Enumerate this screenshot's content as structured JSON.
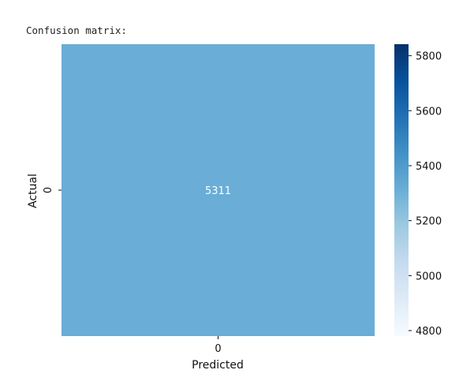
{
  "output": {
    "text": "Confusion matrix:"
  },
  "chart_data": {
    "type": "heatmap",
    "title": "",
    "xlabel": "Predicted",
    "ylabel": "Actual",
    "x_categories": [
      "0"
    ],
    "y_categories": [
      "0"
    ],
    "values": [
      [
        5311
      ]
    ],
    "annotations": [
      [
        "5311"
      ]
    ],
    "colormap": "Blues",
    "annotation_color": "#ffffff",
    "colorbar": {
      "range": [
        4780,
        5842
      ],
      "ticks": [
        4800,
        5000,
        5200,
        5400,
        5600,
        5800
      ],
      "tick_labels": [
        "4800",
        "5000",
        "5200",
        "5400",
        "5600",
        "5800"
      ]
    },
    "colors": {
      "cell": "#6aadd6",
      "colorbar_stops": [
        "#f7fbff",
        "#deebf7",
        "#c6dbef",
        "#9ecae1",
        "#6baed6",
        "#4292c6",
        "#2171b5",
        "#08519c",
        "#08306b"
      ]
    }
  }
}
